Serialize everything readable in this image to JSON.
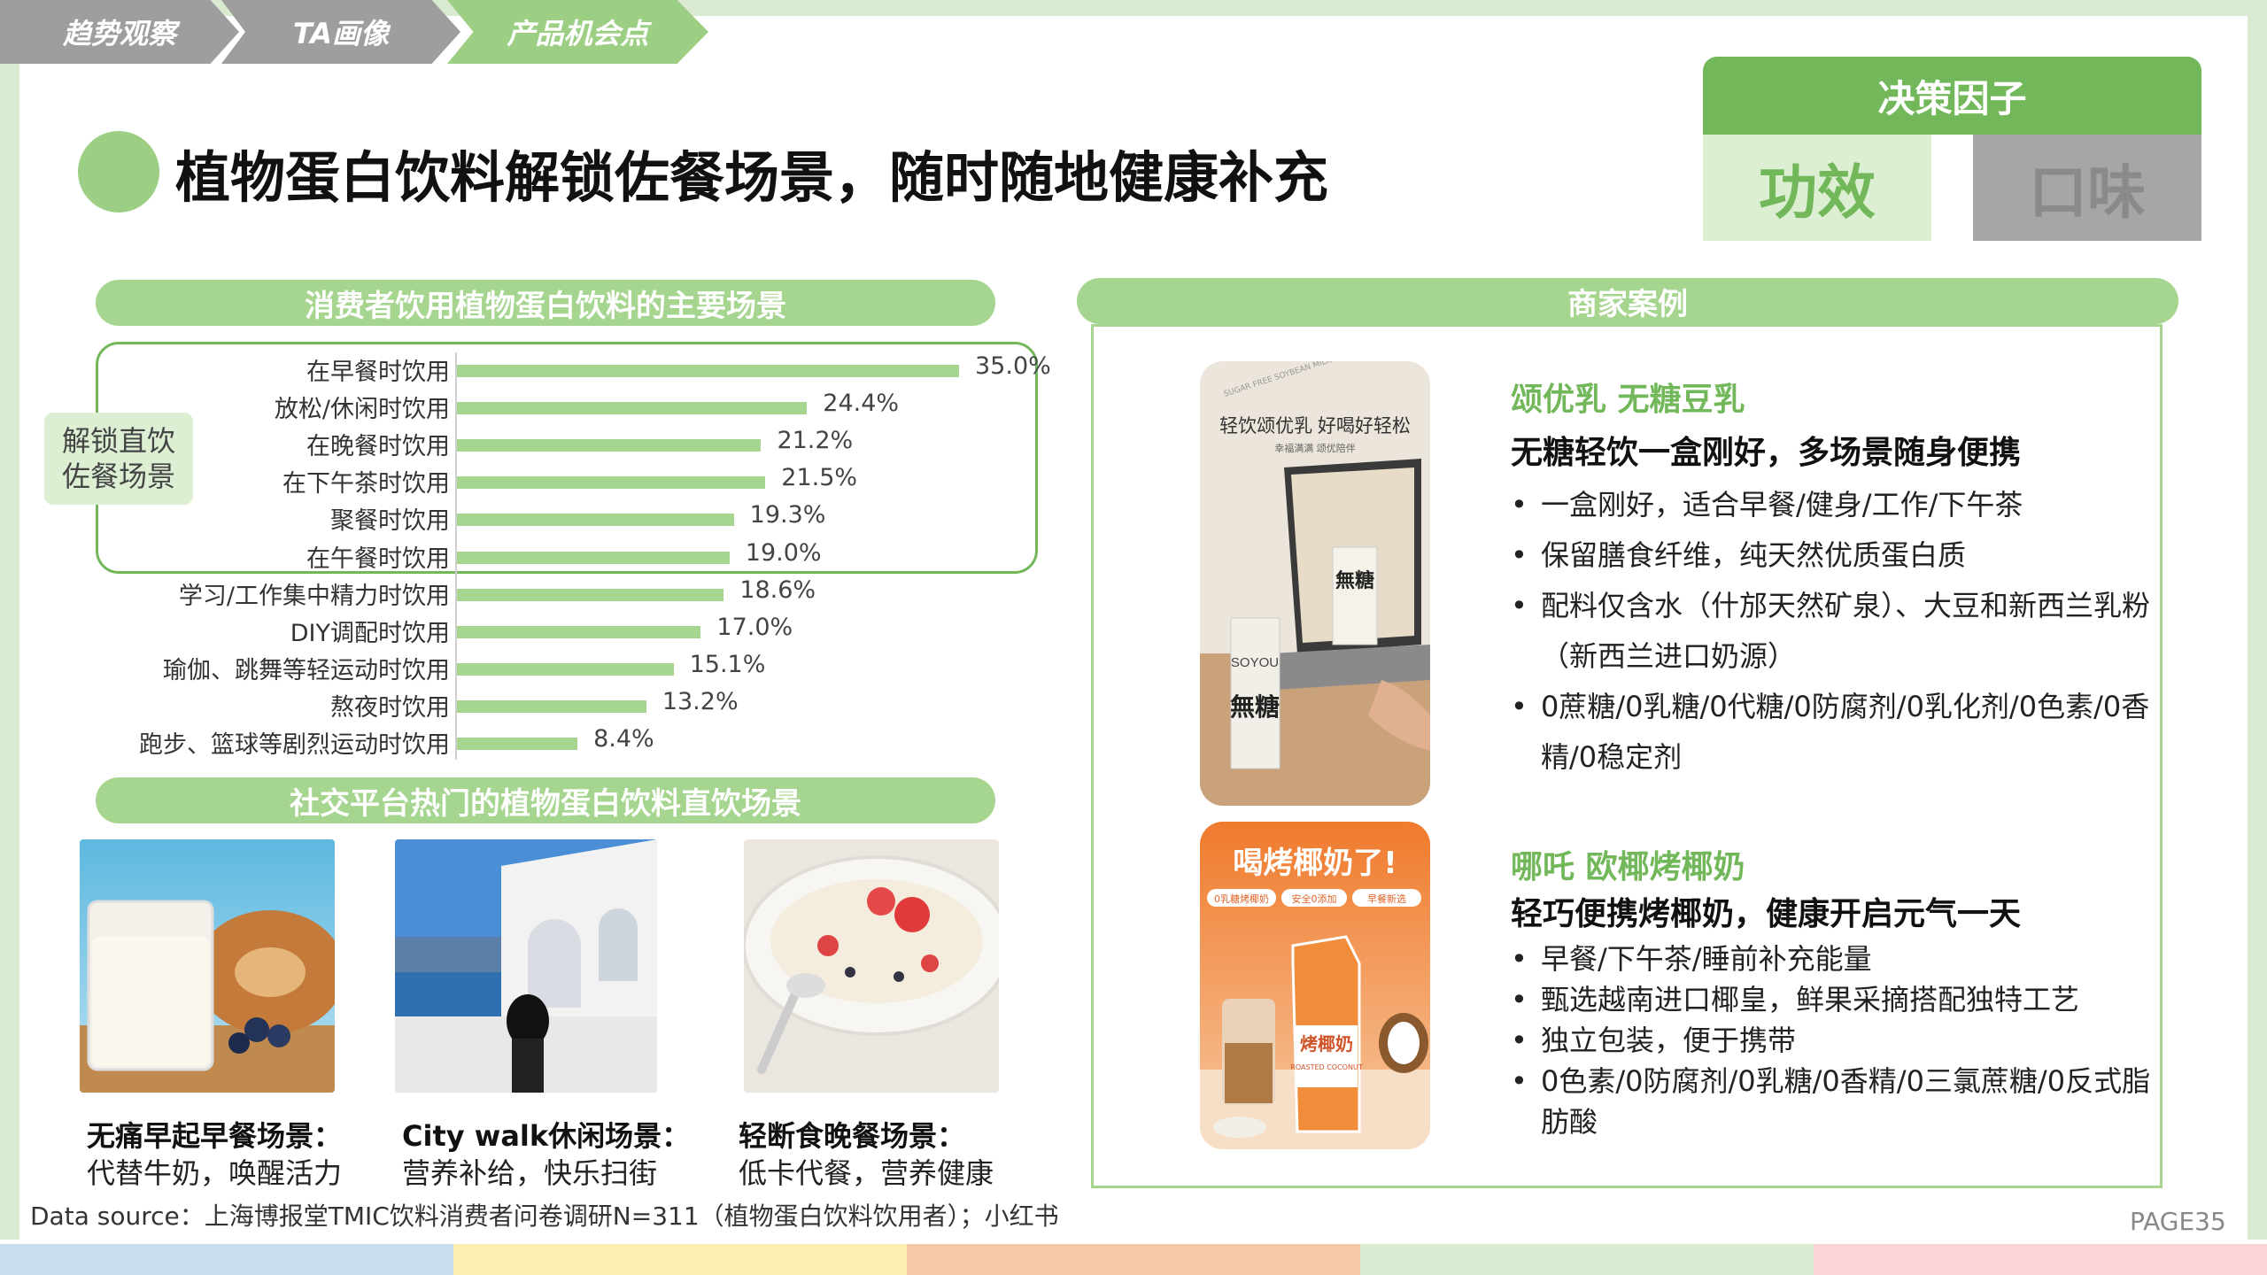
{
  "nav": {
    "items": [
      "趋势观察",
      "TA画像",
      "产品机会点"
    ]
  },
  "title": "植物蛋白饮料解锁佐餐场景，随时随地健康补充",
  "decision": {
    "header": "决策因子",
    "active": "功效",
    "inactive": "口味"
  },
  "left_section_title": "消费者饮用植物蛋白饮料的主要场景",
  "group_tag": [
    "解锁直饮",
    "佐餐场景"
  ],
  "chart_data": {
    "type": "bar",
    "orientation": "horizontal",
    "categories": [
      "在早餐时饮用",
      "放松/休闲时饮用",
      "在晚餐时饮用",
      "在下午茶时饮用",
      "聚餐时饮用",
      "在午餐时饮用",
      "学习/工作集中精力时饮用",
      "DIY调配时饮用",
      "瑜伽、跳舞等轻运动时饮用",
      "熬夜时饮用",
      "跑步、篮球等剧烈运动时饮用"
    ],
    "values": [
      35.0,
      24.4,
      21.2,
      21.5,
      19.3,
      19.0,
      18.6,
      17.0,
      15.1,
      13.2,
      8.4
    ],
    "value_labels": [
      "35.0%",
      "24.4%",
      "21.2%",
      "21.5%",
      "19.3%",
      "19.0%",
      "18.6%",
      "17.0%",
      "15.1%",
      "13.2%",
      "8.4%"
    ],
    "highlighted_count": 6,
    "bar_color": "#a5d58f"
  },
  "social_section_title": "社交平台热门的植物蛋白饮料直饮场景",
  "scenes": [
    {
      "title": "无痛早起早餐场景：",
      "desc": "代替牛奶，唤醒活力"
    },
    {
      "title": "City walk休闲场景：",
      "desc": "营养补给，快乐扫街"
    },
    {
      "title": "轻断食晚餐场景：",
      "desc": "低卡代餐，营养健康"
    }
  ],
  "right_section_title": "商家案例",
  "cases": [
    {
      "brand": "颂优乳 无糖豆乳",
      "slogan": "无糖轻饮一盒刚好，多场景随身便携",
      "bullets": [
        "一盒刚好，适合早餐/健身/工作/下午茶",
        "保留膳食纤维，纯天然优质蛋白质",
        "配料仅含水（什邡天然矿泉）、大豆和新西兰乳粉（新西兰进口奶源）",
        "0蔗糖/0乳糖/0代糖/0防腐剂/0乳化剂/0色素/0香精/0稳定剂"
      ],
      "image_text": {
        "arc": "SUGAR FREE SOYBEAN MILK",
        "headline": "轻饮颂优乳 好喝好轻松",
        "sub": "幸福满满 颂优陪伴",
        "pack": "無糖",
        "brand_mark": "SOYOU"
      }
    },
    {
      "brand": "哪吒 欧椰烤椰奶",
      "slogan": "轻巧便携烤椰奶，健康开启元气一天",
      "bullets": [
        "早餐/下午茶/睡前补充能量",
        "甄选越南进口椰皇，鲜果采摘搭配独特工艺",
        "独立包装，便于携带",
        "0色素/0防腐剂/0乳糖/0香精/0三氯蔗糖/0反式脂肪酸"
      ],
      "image_text": {
        "headline": "喝烤椰奶了!",
        "tags": [
          "0乳糖烤椰奶",
          "安全0添加",
          "早餐新选"
        ],
        "pack": "烤椰奶",
        "pack_en": "ROASTED COCONUT"
      }
    }
  ],
  "source": "Data source：上海博报堂TMIC饮料消费者问卷调研N=311（植物蛋白饮料饮用者）；小红书",
  "page": "PAGE35",
  "colors": {
    "accent": "#72b85a",
    "light_green": "#a5d58f",
    "pale_green": "#dcefd3",
    "grey": "#9e9e9e",
    "strip": [
      "#c9dcf0",
      "#fbeeb0",
      "#f6c7a8",
      "#d9ead0",
      "#fcd3d8"
    ]
  }
}
